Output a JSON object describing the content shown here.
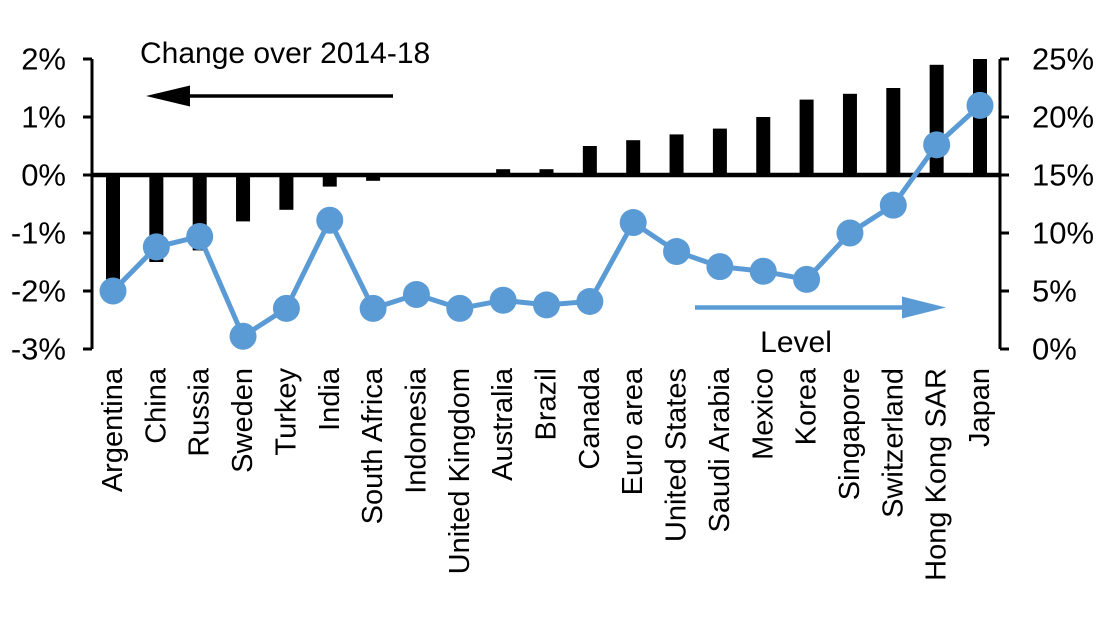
{
  "chart_data": {
    "type": "bar",
    "subtype": "combo-bar-line-dual-axis",
    "title": "",
    "categories": [
      "Argentina",
      "China",
      "Russia",
      "Sweden",
      "Turkey",
      "India",
      "South Africa",
      "Indonesia",
      "United Kingdom",
      "Australia",
      "Brazil",
      "Canada",
      "Euro area",
      "United States",
      "Saudi Arabia",
      "Mexico",
      "Korea",
      "Singapore",
      "Switzerland",
      "Hong Kong SAR",
      "Japan"
    ],
    "series": [
      {
        "name": "Change over 2014-18",
        "type": "bar",
        "axis": "left",
        "color": "#000000",
        "values": [
          -1.8,
          -1.5,
          -1.3,
          -0.8,
          -0.6,
          -0.2,
          -0.1,
          0,
          0,
          0.1,
          0.1,
          0.5,
          0.6,
          0.7,
          0.8,
          1.0,
          1.3,
          1.4,
          1.5,
          1.9,
          2.0
        ]
      },
      {
        "name": "Level",
        "type": "line",
        "axis": "right",
        "color": "#5B9BD5",
        "values": [
          5.0,
          8.8,
          9.7,
          1.1,
          3.5,
          11.1,
          3.5,
          4.7,
          3.5,
          4.2,
          3.8,
          4.1,
          10.9,
          8.4,
          7.1,
          6.7,
          6.0,
          10.0,
          12.4,
          17.6,
          21.0
        ]
      }
    ],
    "left_axis": {
      "min": -3,
      "max": 2,
      "tick_values": [
        2,
        1,
        0,
        -1,
        -2,
        -3
      ],
      "tick_labels": [
        "2%",
        "1%",
        "0%",
        "-1%",
        "-2%",
        "-3%"
      ]
    },
    "right_axis": {
      "min": 0,
      "max": 25,
      "tick_values": [
        25,
        20,
        15,
        10,
        5,
        0
      ],
      "tick_labels": [
        "25%",
        "20%",
        "15%",
        "10%",
        "5%",
        "0%"
      ]
    },
    "annotations": {
      "bar_series_label": "Change over 2014-18",
      "line_series_label": "Level",
      "bar_arrow_direction": "left",
      "line_arrow_direction": "right"
    },
    "colors": {
      "bar": "#000000",
      "line": "#5B9BD5",
      "axis": "#000000",
      "background": "#ffffff"
    },
    "grid": false,
    "legend_position": "in-plot-arrow-annotations"
  }
}
